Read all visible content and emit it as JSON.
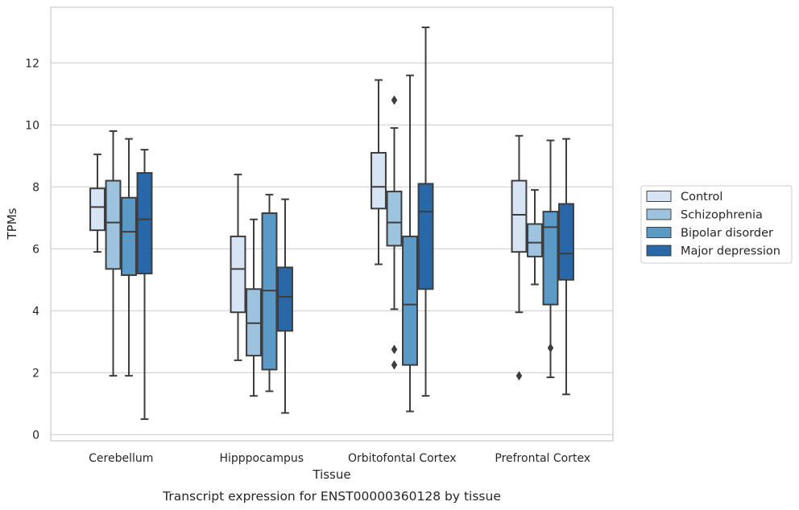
{
  "chart_data": {
    "type": "box",
    "title": "",
    "caption": "Transcript expression for ENST00000360128 by tissue",
    "xlabel": "Tissue",
    "ylabel": "TPMs",
    "ylim": [
      -0.2,
      13.8
    ],
    "yticks": [
      "0",
      "2",
      "4",
      "6",
      "8",
      "10",
      "12"
    ],
    "grid": "horizontal",
    "legend_position": "right",
    "categories": [
      "Cerebellum",
      "Hipppocampus",
      "Orbitofontal Cortex",
      "Prefrontal Cortex"
    ],
    "series": [
      {
        "name": "Control",
        "color": "#d6e4f3",
        "boxes": [
          {
            "whisker_low": 5.9,
            "q1": 6.6,
            "median": 7.35,
            "q3": 7.95,
            "whisker_high": 9.05,
            "outliers": []
          },
          {
            "whisker_low": 2.4,
            "q1": 3.95,
            "median": 5.35,
            "q3": 6.4,
            "whisker_high": 8.4,
            "outliers": []
          },
          {
            "whisker_low": 5.5,
            "q1": 7.3,
            "median": 8.0,
            "q3": 9.1,
            "whisker_high": 11.45,
            "outliers": []
          },
          {
            "whisker_low": 3.95,
            "q1": 5.9,
            "median": 7.1,
            "q3": 8.2,
            "whisker_high": 9.65,
            "outliers": [
              1.9
            ]
          }
        ]
      },
      {
        "name": "Schizophrenia",
        "color": "#9dc3de",
        "boxes": [
          {
            "whisker_low": 1.9,
            "q1": 5.35,
            "median": 6.85,
            "q3": 8.2,
            "whisker_high": 9.8,
            "outliers": []
          },
          {
            "whisker_low": 1.25,
            "q1": 2.55,
            "median": 3.6,
            "q3": 4.7,
            "whisker_high": 6.95,
            "outliers": []
          },
          {
            "whisker_low": 4.05,
            "q1": 6.1,
            "median": 6.85,
            "q3": 7.85,
            "whisker_high": 9.9,
            "outliers": [
              10.8,
              2.75,
              2.25
            ]
          },
          {
            "whisker_low": 4.85,
            "q1": 5.75,
            "median": 6.2,
            "q3": 6.8,
            "whisker_high": 7.9,
            "outliers": []
          }
        ]
      },
      {
        "name": "Bipolar disorder",
        "color": "#5b9ac7",
        "boxes": [
          {
            "whisker_low": 1.9,
            "q1": 5.15,
            "median": 6.55,
            "q3": 7.65,
            "whisker_high": 9.55,
            "outliers": []
          },
          {
            "whisker_low": 1.4,
            "q1": 2.1,
            "median": 4.65,
            "q3": 7.15,
            "whisker_high": 7.75,
            "outliers": []
          },
          {
            "whisker_low": 0.75,
            "q1": 2.25,
            "median": 4.2,
            "q3": 6.4,
            "whisker_high": 11.6,
            "outliers": []
          },
          {
            "whisker_low": 1.85,
            "q1": 4.2,
            "median": 6.7,
            "q3": 7.2,
            "whisker_high": 9.5,
            "outliers": [
              2.8
            ]
          }
        ]
      },
      {
        "name": "Major depression",
        "color": "#2867a8",
        "boxes": [
          {
            "whisker_low": 0.5,
            "q1": 5.2,
            "median": 6.95,
            "q3": 8.45,
            "whisker_high": 9.2,
            "outliers": []
          },
          {
            "whisker_low": 0.7,
            "q1": 3.35,
            "median": 4.45,
            "q3": 5.4,
            "whisker_high": 7.6,
            "outliers": []
          },
          {
            "whisker_low": 1.25,
            "q1": 4.7,
            "median": 7.2,
            "q3": 8.1,
            "whisker_high": 13.15,
            "outliers": []
          },
          {
            "whisker_low": 1.3,
            "q1": 5.0,
            "median": 5.85,
            "q3": 7.45,
            "whisker_high": 9.55,
            "outliers": []
          }
        ]
      }
    ]
  }
}
